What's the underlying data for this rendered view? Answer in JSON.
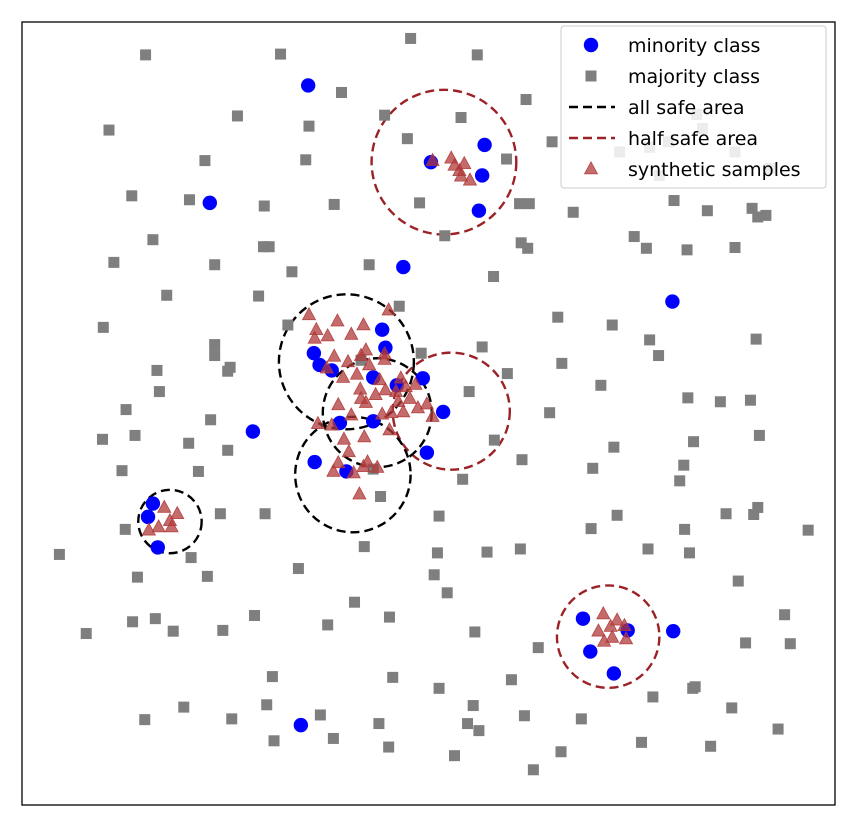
{
  "chart_data": {
    "type": "scatter",
    "title": "",
    "xlabel": "",
    "ylabel": "",
    "xlim": [
      0,
      1
    ],
    "ylim": [
      0,
      1
    ],
    "axes_ticks": false,
    "grid": false,
    "legend_position": "top-right",
    "colors": {
      "minority": "#0000ff",
      "majority": "#7f7f7f",
      "all_safe": "#000000",
      "half_safe": "#9b2226",
      "synthetic": "#b03a3a"
    },
    "legend": [
      {
        "key": "minority",
        "label": "minority class",
        "marker": "circle"
      },
      {
        "key": "majority",
        "label": "majority class",
        "marker": "square"
      },
      {
        "key": "all_safe",
        "label": "all safe area",
        "marker": "dashed-line"
      },
      {
        "key": "half_safe",
        "label": "half safe area",
        "marker": "dashed-line"
      },
      {
        "key": "synthetic",
        "label": "synthetic samples",
        "marker": "triangle"
      }
    ],
    "series": [
      {
        "key": "minority",
        "name": "minority class",
        "points": [
          [
            0.352,
            0.919
          ],
          [
            0.231,
            0.769
          ],
          [
            0.469,
            0.687
          ],
          [
            0.8,
            0.643
          ],
          [
            0.566,
            0.804
          ],
          [
            0.569,
            0.843
          ],
          [
            0.562,
            0.759
          ],
          [
            0.503,
            0.821
          ],
          [
            0.359,
            0.577
          ],
          [
            0.443,
            0.607
          ],
          [
            0.447,
            0.584
          ],
          [
            0.366,
            0.562
          ],
          [
            0.381,
            0.555
          ],
          [
            0.432,
            0.546
          ],
          [
            0.493,
            0.545
          ],
          [
            0.461,
            0.536
          ],
          [
            0.518,
            0.502
          ],
          [
            0.432,
            0.49
          ],
          [
            0.391,
            0.488
          ],
          [
            0.284,
            0.477
          ],
          [
            0.498,
            0.45
          ],
          [
            0.36,
            0.438
          ],
          [
            0.399,
            0.426
          ],
          [
            0.161,
            0.385
          ],
          [
            0.155,
            0.368
          ],
          [
            0.167,
            0.329
          ],
          [
            0.69,
            0.238
          ],
          [
            0.745,
            0.223
          ],
          [
            0.801,
            0.222
          ],
          [
            0.699,
            0.196
          ],
          [
            0.728,
            0.168
          ],
          [
            0.343,
            0.102
          ]
        ]
      },
      {
        "key": "majority",
        "name": "majority class",
        "points": [
          [
            0.152,
            0.958
          ],
          [
            0.318,
            0.959
          ],
          [
            0.478,
            0.979
          ],
          [
            0.56,
            0.958
          ],
          [
            0.393,
            0.91
          ],
          [
            0.62,
            0.901
          ],
          [
            0.265,
            0.88
          ],
          [
            0.446,
            0.881
          ],
          [
            0.54,
            0.878
          ],
          [
            0.353,
            0.867
          ],
          [
            0.107,
            0.862
          ],
          [
            0.474,
            0.851
          ],
          [
            0.652,
            0.847
          ],
          [
            0.225,
            0.823
          ],
          [
            0.349,
            0.824
          ],
          [
            0.596,
            0.825
          ],
          [
            0.735,
            0.834
          ],
          [
            0.795,
            0.847
          ],
          [
            0.837,
            0.864
          ],
          [
            0.83,
            0.882
          ],
          [
            0.772,
            0.84
          ],
          [
            0.784,
            0.804
          ],
          [
            0.877,
            0.834
          ],
          [
            0.92,
            0.813
          ],
          [
            0.135,
            0.778
          ],
          [
            0.206,
            0.773
          ],
          [
            0.298,
            0.765
          ],
          [
            0.384,
            0.767
          ],
          [
            0.489,
            0.769
          ],
          [
            0.612,
            0.768
          ],
          [
            0.624,
            0.768
          ],
          [
            0.678,
            0.757
          ],
          [
            0.802,
            0.772
          ],
          [
            0.843,
            0.759
          ],
          [
            0.898,
            0.762
          ],
          [
            0.905,
            0.751
          ],
          [
            0.915,
            0.753
          ],
          [
            0.161,
            0.722
          ],
          [
            0.297,
            0.713
          ],
          [
            0.304,
            0.713
          ],
          [
            0.52,
            0.727
          ],
          [
            0.614,
            0.718
          ],
          [
            0.622,
            0.711
          ],
          [
            0.753,
            0.726
          ],
          [
            0.768,
            0.711
          ],
          [
            0.818,
            0.709
          ],
          [
            0.877,
            0.712
          ],
          [
            0.113,
            0.693
          ],
          [
            0.237,
            0.69
          ],
          [
            0.332,
            0.681
          ],
          [
            0.427,
            0.69
          ],
          [
            0.58,
            0.675
          ],
          [
            0.178,
            0.651
          ],
          [
            0.291,
            0.65
          ],
          [
            0.464,
            0.637
          ],
          [
            0.1,
            0.61
          ],
          [
            0.327,
            0.613
          ],
          [
            0.659,
            0.623
          ],
          [
            0.726,
            0.613
          ],
          [
            0.903,
            0.595
          ],
          [
            0.237,
            0.588
          ],
          [
            0.566,
            0.585
          ],
          [
            0.772,
            0.594
          ],
          [
            0.237,
            0.574
          ],
          [
            0.491,
            0.577
          ],
          [
            0.256,
            0.559
          ],
          [
            0.417,
            0.568
          ],
          [
            0.664,
            0.564
          ],
          [
            0.783,
            0.574
          ],
          [
            0.166,
            0.555
          ],
          [
            0.253,
            0.554
          ],
          [
            0.597,
            0.551
          ],
          [
            0.712,
            0.536
          ],
          [
            0.169,
            0.528
          ],
          [
            0.55,
            0.528
          ],
          [
            0.819,
            0.52
          ],
          [
            0.859,
            0.515
          ],
          [
            0.896,
            0.517
          ],
          [
            0.128,
            0.505
          ],
          [
            0.649,
            0.501
          ],
          [
            0.232,
            0.492
          ],
          [
            0.139,
            0.472
          ],
          [
            0.099,
            0.467
          ],
          [
            0.205,
            0.462
          ],
          [
            0.253,
            0.453
          ],
          [
            0.581,
            0.466
          ],
          [
            0.826,
            0.464
          ],
          [
            0.907,
            0.472
          ],
          [
            0.728,
            0.457
          ],
          [
            0.615,
            0.441
          ],
          [
            0.702,
            0.43
          ],
          [
            0.814,
            0.434
          ],
          [
            0.123,
            0.427
          ],
          [
            0.217,
            0.426
          ],
          [
            0.432,
            0.429
          ],
          [
            0.542,
            0.416
          ],
          [
            0.809,
            0.414
          ],
          [
            0.441,
            0.394
          ],
          [
            0.244,
            0.372
          ],
          [
            0.299,
            0.372
          ],
          [
            0.732,
            0.37
          ],
          [
            0.866,
            0.372
          ],
          [
            0.9,
            0.371
          ],
          [
            0.513,
            0.369
          ],
          [
            0.905,
            0.38
          ],
          [
            0.127,
            0.352
          ],
          [
            0.7,
            0.353
          ],
          [
            0.815,
            0.352
          ],
          [
            0.967,
            0.351
          ],
          [
            0.421,
            0.33
          ],
          [
            0.572,
            0.323
          ],
          [
            0.613,
            0.327
          ],
          [
            0.77,
            0.327
          ],
          [
            0.821,
            0.322
          ],
          [
            0.046,
            0.32
          ],
          [
            0.208,
            0.316
          ],
          [
            0.511,
            0.322
          ],
          [
            0.34,
            0.302
          ],
          [
            0.507,
            0.294
          ],
          [
            0.142,
            0.291
          ],
          [
            0.228,
            0.292
          ],
          [
            0.881,
            0.286
          ],
          [
            0.523,
            0.271
          ],
          [
            0.409,
            0.259
          ],
          [
            0.164,
            0.238
          ],
          [
            0.136,
            0.234
          ],
          [
            0.286,
            0.242
          ],
          [
            0.452,
            0.24
          ],
          [
            0.938,
            0.243
          ],
          [
            0.079,
            0.219
          ],
          [
            0.186,
            0.222
          ],
          [
            0.247,
            0.223
          ],
          [
            0.376,
            0.23
          ],
          [
            0.557,
            0.221
          ],
          [
            0.89,
            0.207
          ],
          [
            0.635,
            0.201
          ],
          [
            0.945,
            0.206
          ],
          [
            0.308,
            0.164
          ],
          [
            0.456,
            0.163
          ],
          [
            0.602,
            0.16
          ],
          [
            0.825,
            0.149
          ],
          [
            0.513,
            0.149
          ],
          [
            0.828,
            0.151
          ],
          [
            0.776,
            0.138
          ],
          [
            0.199,
            0.125
          ],
          [
            0.301,
            0.128
          ],
          [
            0.555,
            0.127
          ],
          [
            0.873,
            0.124
          ],
          [
            0.151,
            0.109
          ],
          [
            0.258,
            0.11
          ],
          [
            0.367,
            0.115
          ],
          [
            0.439,
            0.104
          ],
          [
            0.548,
            0.104
          ],
          [
            0.618,
            0.114
          ],
          [
            0.688,
            0.11
          ],
          [
            0.562,
            0.095
          ],
          [
            0.93,
            0.097
          ],
          [
            0.31,
            0.082
          ],
          [
            0.383,
            0.085
          ],
          [
            0.451,
            0.074
          ],
          [
            0.762,
            0.08
          ],
          [
            0.847,
            0.075
          ],
          [
            0.663,
            0.068
          ],
          [
            0.532,
            0.063
          ],
          [
            0.629,
            0.045
          ]
        ]
      },
      {
        "key": "synthetic",
        "name": "synthetic samples",
        "points": [
          [
            0.505,
            0.823
          ],
          [
            0.528,
            0.826
          ],
          [
            0.532,
            0.817
          ],
          [
            0.538,
            0.81
          ],
          [
            0.54,
            0.803
          ],
          [
            0.551,
            0.798
          ],
          [
            0.544,
            0.819
          ],
          [
            0.353,
            0.626
          ],
          [
            0.388,
            0.618
          ],
          [
            0.42,
            0.613
          ],
          [
            0.451,
            0.632
          ],
          [
            0.362,
            0.607
          ],
          [
            0.376,
            0.599
          ],
          [
            0.36,
            0.596
          ],
          [
            0.405,
            0.601
          ],
          [
            0.423,
            0.581
          ],
          [
            0.446,
            0.576
          ],
          [
            0.384,
            0.573
          ],
          [
            0.401,
            0.566
          ],
          [
            0.417,
            0.574
          ],
          [
            0.427,
            0.562
          ],
          [
            0.446,
            0.569
          ],
          [
            0.375,
            0.558
          ],
          [
            0.395,
            0.546
          ],
          [
            0.412,
            0.55
          ],
          [
            0.44,
            0.543
          ],
          [
            0.416,
            0.531
          ],
          [
            0.417,
            0.519
          ],
          [
            0.423,
            0.514
          ],
          [
            0.435,
            0.524
          ],
          [
            0.447,
            0.53
          ],
          [
            0.46,
            0.528
          ],
          [
            0.466,
            0.545
          ],
          [
            0.472,
            0.534
          ],
          [
            0.484,
            0.537
          ],
          [
            0.463,
            0.515
          ],
          [
            0.477,
            0.519
          ],
          [
            0.487,
            0.507
          ],
          [
            0.469,
            0.502
          ],
          [
            0.454,
            0.501
          ],
          [
            0.443,
            0.499
          ],
          [
            0.498,
            0.512
          ],
          [
            0.505,
            0.496
          ],
          [
            0.452,
            0.479
          ],
          [
            0.389,
            0.511
          ],
          [
            0.405,
            0.498
          ],
          [
            0.381,
            0.485
          ],
          [
            0.364,
            0.487
          ],
          [
            0.396,
            0.467
          ],
          [
            0.421,
            0.47
          ],
          [
            0.402,
            0.451
          ],
          [
            0.383,
            0.426
          ],
          [
            0.389,
            0.437
          ],
          [
            0.408,
            0.424
          ],
          [
            0.42,
            0.432
          ],
          [
            0.425,
            0.438
          ],
          [
            0.437,
            0.431
          ],
          [
            0.415,
            0.397
          ],
          [
            0.175,
            0.38
          ],
          [
            0.182,
            0.363
          ],
          [
            0.191,
            0.372
          ],
          [
            0.168,
            0.355
          ],
          [
            0.184,
            0.355
          ],
          [
            0.156,
            0.351
          ],
          [
            0.715,
            0.244
          ],
          [
            0.732,
            0.236
          ],
          [
            0.724,
            0.228
          ],
          [
            0.741,
            0.229
          ],
          [
            0.709,
            0.222
          ],
          [
            0.726,
            0.214
          ],
          [
            0.743,
            0.212
          ],
          [
            0.716,
            0.209
          ]
        ]
      }
    ],
    "regions": [
      {
        "key": "half_safe",
        "name": "half safe area",
        "center": [
          0.519,
          0.821
        ],
        "radius": 0.089
      },
      {
        "key": "all_safe",
        "name": "all safe area",
        "center": [
          0.399,
          0.566
        ],
        "radius": 0.083
      },
      {
        "key": "half_safe",
        "name": "half safe area",
        "center": [
          0.528,
          0.503
        ],
        "radius": 0.072
      },
      {
        "key": "all_safe",
        "name": "all safe area",
        "center": [
          0.437,
          0.501
        ],
        "radius": 0.067
      },
      {
        "key": "all_safe",
        "name": "all safe area",
        "center": [
          0.407,
          0.422
        ],
        "radius": 0.071
      },
      {
        "key": "all_safe",
        "name": "all safe area",
        "center": [
          0.182,
          0.362
        ],
        "radius": 0.039
      },
      {
        "key": "half_safe",
        "name": "half safe area",
        "center": [
          0.721,
          0.215
        ],
        "radius": 0.063
      }
    ]
  }
}
